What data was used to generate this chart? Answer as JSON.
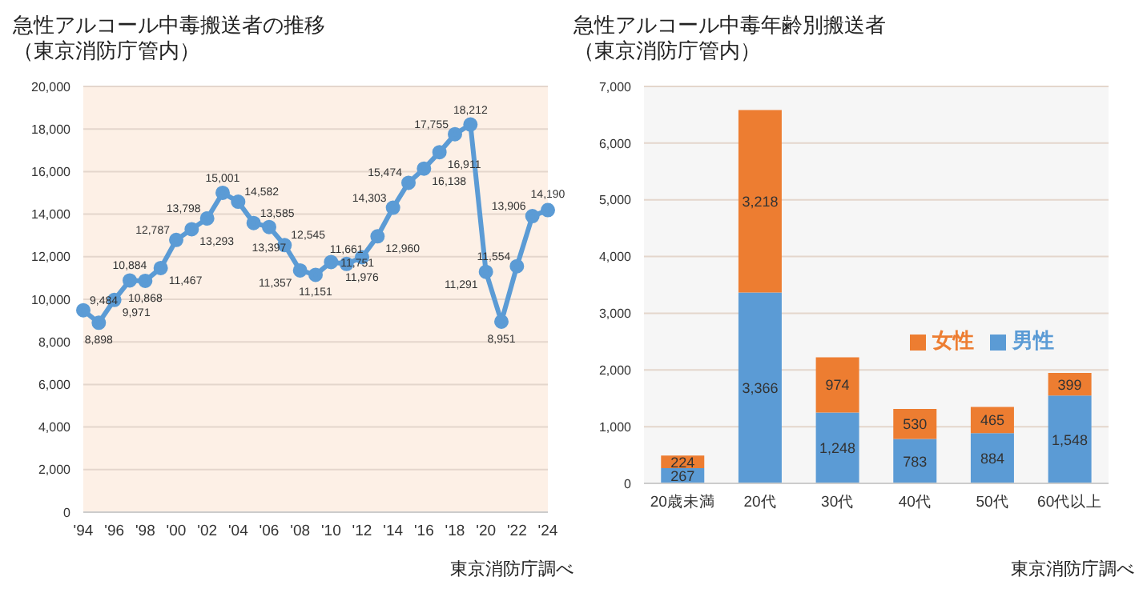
{
  "chart_data": [
    {
      "type": "line",
      "title": "急性アルコール中毒搬送者の推移",
      "subtitle": "（東京消防庁管内）",
      "annotations": [
        "東京消防庁調べ"
      ],
      "categories": [
        "'94",
        null,
        "'96",
        null,
        "'98",
        null,
        "'00",
        null,
        "'02",
        null,
        "'04",
        null,
        "'06",
        null,
        "'08",
        null,
        "'10",
        null,
        "'12",
        null,
        "'14",
        null,
        "'16",
        null,
        "'18",
        null,
        "'20",
        null,
        "'22",
        null,
        "'24"
      ],
      "series": [
        {
          "color": "#5b9bd5",
          "values": [
            9484,
            8898,
            9971,
            10884,
            10868,
            11467,
            12787,
            13293,
            13798,
            15001,
            14582,
            13585,
            13397,
            12545,
            11357,
            11151,
            11751,
            11661,
            11976,
            12960,
            14303,
            15474,
            16138,
            16911,
            17755,
            18212,
            11291,
            8951,
            11554,
            13906,
            14190
          ],
          "value_labels": [
            "9,484",
            "8,898",
            "9,971",
            "10,884",
            "10,868",
            "11,467",
            "12,787",
            "13,293",
            "13,798",
            "15,001",
            "14,582",
            "13,585",
            "13,397",
            "12,545",
            "11,357",
            "11,151",
            "11,751",
            "11,661",
            "11,976",
            "12,960",
            "14,303",
            "15,474",
            "16,138",
            "16,911",
            "17,755",
            "18,212",
            "11,291",
            "8,951",
            "11,554",
            "13,906",
            "14,190"
          ]
        }
      ],
      "ylim": [
        0,
        20000
      ],
      "yticks": [
        0,
        {
          "value": 2000,
          "label": "2,000"
        },
        {
          "value": 4000,
          "label": "4,000"
        },
        {
          "value": 6000,
          "label": "6,000"
        },
        {
          "value": 8000,
          "label": "8,000"
        },
        {
          "value": 10000,
          "label": "10,000"
        },
        {
          "value": 12000,
          "label": "12,000"
        },
        {
          "value": 14000,
          "label": "14,000"
        },
        {
          "value": 16000,
          "label": "16,000"
        },
        {
          "value": 18000,
          "label": "18,000"
        },
        {
          "value": 20000,
          "label": "20,000"
        }
      ],
      "grid": "y",
      "marker": "circle",
      "line_style": "solid"
    },
    {
      "type": "bar",
      "title": "急性アルコール中毒年齢別搬送者",
      "subtitle": "（東京消防庁管内）",
      "annotations": [
        "東京消防庁調べ"
      ],
      "categories": [
        "20歳未満",
        "20代",
        "30代",
        "40代",
        "50代",
        "60代以上"
      ],
      "series": [
        {
          "name": "男性",
          "color": "#5b9bd5",
          "values": [
            267,
            3366,
            1248,
            783,
            884,
            1548
          ],
          "value_labels": [
            "267",
            "3,366",
            "1,248",
            "783",
            "884",
            "1,548"
          ]
        },
        {
          "name": "女性",
          "color": "#ed7d31",
          "values": [
            224,
            3218,
            974,
            530,
            465,
            399
          ],
          "value_labels": [
            "224",
            "3,218",
            "974",
            "530",
            "465",
            "399"
          ]
        }
      ],
      "stacked": true,
      "ylim": [
        0,
        7000
      ],
      "yticks": [
        0,
        {
          "value": 1000,
          "label": "1,000"
        },
        {
          "value": 2000,
          "label": "2,000"
        },
        {
          "value": 3000,
          "label": "3,000"
        },
        {
          "value": 4000,
          "label": "4,000"
        },
        {
          "value": 5000,
          "label": "5,000"
        },
        {
          "value": 6000,
          "label": "6,000"
        },
        {
          "value": 7000,
          "label": "7,000"
        }
      ],
      "grid": "y",
      "legend": "right"
    }
  ]
}
